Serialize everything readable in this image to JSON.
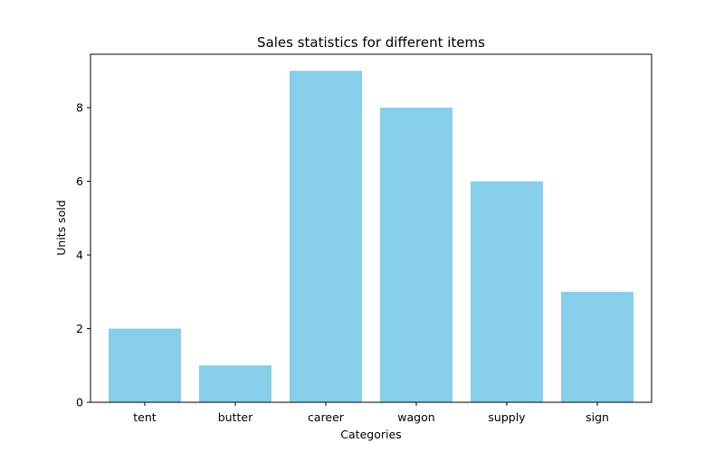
{
  "chart_data": {
    "type": "bar",
    "title": "Sales statistics for different items",
    "xlabel": "Categories",
    "ylabel": "Units sold",
    "categories": [
      "tent",
      "butter",
      "career",
      "wagon",
      "supply",
      "sign"
    ],
    "values": [
      2,
      1,
      9,
      8,
      6,
      3
    ],
    "ylim": [
      0,
      9.45
    ],
    "yticks": [
      0,
      2,
      4,
      6,
      8
    ],
    "bar_color": "#87CEEB",
    "grid": false,
    "legend": "none"
  }
}
